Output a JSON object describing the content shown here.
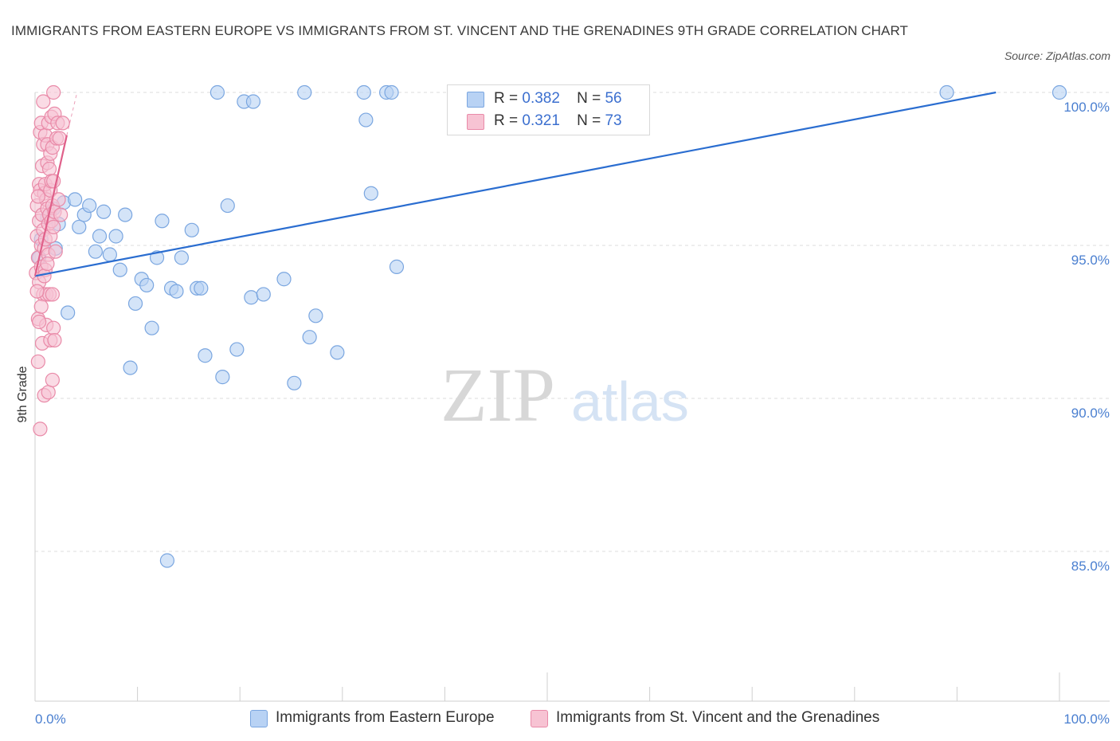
{
  "header": {
    "title": "IMMIGRANTS FROM EASTERN EUROPE VS IMMIGRANTS FROM ST. VINCENT AND THE GRENADINES 9TH GRADE CORRELATION CHART",
    "source": "Source: ZipAtlas.com"
  },
  "watermark": {
    "zip": "ZIP",
    "atlas": "atlas"
  },
  "legend": {
    "blue": {
      "r_label": "R =",
      "r_value": "0.382",
      "n_label": "N =",
      "n_value": "56"
    },
    "pink": {
      "r_label": "R =",
      "r_value": "0.321",
      "n_label": "N =",
      "n_value": "73"
    }
  },
  "colors": {
    "blue_fill": "#b8d2f4",
    "blue_stroke": "#7aa6e0",
    "blue_line": "#2a6dd0",
    "pink_fill": "#f7c3d3",
    "pink_stroke": "#e98aa8",
    "pink_line": "#e0608a",
    "tick_text": "#4a7fd0",
    "grid": "#dedede"
  },
  "chart_data": {
    "type": "scatter",
    "title": "IMMIGRANTS FROM EASTERN EUROPE VS IMMIGRANTS FROM ST. VINCENT AND THE GRENADINES 9TH GRADE CORRELATION CHART",
    "xlabel": "",
    "ylabel": "9th Grade",
    "xlim": [
      0,
      100
    ],
    "ylim": [
      80.5,
      100.4
    ],
    "x_tick_labels": [
      "0.0%",
      "100.0%"
    ],
    "y_ticks": [
      85,
      90,
      95,
      100
    ],
    "y_tick_labels": [
      "85.0%",
      "90.0%",
      "95.0%",
      "100.0%"
    ],
    "grid": true,
    "legend_position": "top-center",
    "series": [
      {
        "name": "Immigrants from Eastern Europe",
        "color": "#b8d2f4",
        "R": 0.382,
        "N": 56,
        "trendline": {
          "x": [
            0,
            93.8
          ],
          "y": [
            94.0,
            100.0
          ]
        },
        "points": [
          [
            0.4,
            94.6
          ],
          [
            1.8,
            96.2
          ],
          [
            2.3,
            95.7
          ],
          [
            2.8,
            96.4
          ],
          [
            3.2,
            92.8
          ],
          [
            3.9,
            96.5
          ],
          [
            4.3,
            95.6
          ],
          [
            4.8,
            96.0
          ],
          [
            5.3,
            96.3
          ],
          [
            5.9,
            94.8
          ],
          [
            6.3,
            95.3
          ],
          [
            6.7,
            96.1
          ],
          [
            7.3,
            94.7
          ],
          [
            7.9,
            95.3
          ],
          [
            8.3,
            94.2
          ],
          [
            8.8,
            96.0
          ],
          [
            9.3,
            91.0
          ],
          [
            9.8,
            93.1
          ],
          [
            10.4,
            93.9
          ],
          [
            10.9,
            93.7
          ],
          [
            11.4,
            92.3
          ],
          [
            11.9,
            94.6
          ],
          [
            12.4,
            95.8
          ],
          [
            12.9,
            84.7
          ],
          [
            13.3,
            93.6
          ],
          [
            13.8,
            93.5
          ],
          [
            14.3,
            94.6
          ],
          [
            15.3,
            95.5
          ],
          [
            15.8,
            93.6
          ],
          [
            16.2,
            93.6
          ],
          [
            16.6,
            91.4
          ],
          [
            17.8,
            100.0
          ],
          [
            18.3,
            90.7
          ],
          [
            18.8,
            96.3
          ],
          [
            19.7,
            91.6
          ],
          [
            20.4,
            99.7
          ],
          [
            21.1,
            93.3
          ],
          [
            21.3,
            99.7
          ],
          [
            22.3,
            93.4
          ],
          [
            24.3,
            93.9
          ],
          [
            25.3,
            90.5
          ],
          [
            26.3,
            100.0
          ],
          [
            26.8,
            92.0
          ],
          [
            27.4,
            92.7
          ],
          [
            29.5,
            91.5
          ],
          [
            32.1,
            100.0
          ],
          [
            32.3,
            99.1
          ],
          [
            32.8,
            96.7
          ],
          [
            34.3,
            100.0
          ],
          [
            34.8,
            100.0
          ],
          [
            35.3,
            94.3
          ],
          [
            89.0,
            100.0
          ],
          [
            100.0,
            100.0
          ],
          [
            0.6,
            95.2
          ],
          [
            1.2,
            95.9
          ],
          [
            2.0,
            94.9
          ]
        ]
      },
      {
        "name": "Immigrants from St. Vincent and the Grenadines",
        "color": "#f7c3d3",
        "R": 0.321,
        "N": 73,
        "trendline": {
          "x": [
            0,
            3.1
          ],
          "y": [
            94.0,
            98.6
          ],
          "dashed_x": [
            3.1,
            4.1
          ],
          "dashed_y": [
            98.6,
            100.0
          ]
        },
        "points": [
          [
            0.1,
            94.1
          ],
          [
            0.2,
            95.3
          ],
          [
            0.2,
            96.3
          ],
          [
            0.3,
            92.6
          ],
          [
            0.3,
            91.2
          ],
          [
            0.3,
            94.6
          ],
          [
            0.4,
            97.0
          ],
          [
            0.4,
            95.8
          ],
          [
            0.4,
            93.8
          ],
          [
            0.5,
            96.8
          ],
          [
            0.5,
            98.7
          ],
          [
            0.5,
            89.0
          ],
          [
            0.6,
            99.0
          ],
          [
            0.6,
            95.0
          ],
          [
            0.6,
            94.3
          ],
          [
            0.7,
            97.6
          ],
          [
            0.7,
            96.0
          ],
          [
            0.7,
            91.8
          ],
          [
            0.8,
            99.7
          ],
          [
            0.8,
            98.3
          ],
          [
            0.8,
            95.5
          ],
          [
            0.8,
            93.4
          ],
          [
            0.9,
            96.7
          ],
          [
            0.9,
            94.9
          ],
          [
            0.9,
            90.1
          ],
          [
            1.0,
            98.6
          ],
          [
            1.0,
            97.0
          ],
          [
            1.0,
            95.2
          ],
          [
            1.0,
            94.2
          ],
          [
            1.1,
            96.5
          ],
          [
            1.1,
            93.4
          ],
          [
            1.1,
            92.4
          ],
          [
            1.2,
            98.3
          ],
          [
            1.2,
            97.7
          ],
          [
            1.2,
            96.2
          ],
          [
            1.3,
            99.0
          ],
          [
            1.3,
            95.7
          ],
          [
            1.3,
            94.7
          ],
          [
            1.3,
            90.2
          ],
          [
            1.4,
            97.5
          ],
          [
            1.4,
            96.0
          ],
          [
            1.4,
            93.4
          ],
          [
            1.5,
            98.0
          ],
          [
            1.5,
            96.8
          ],
          [
            1.5,
            95.3
          ],
          [
            1.5,
            91.9
          ],
          [
            1.6,
            99.2
          ],
          [
            1.6,
            97.1
          ],
          [
            1.6,
            95.8
          ],
          [
            1.7,
            98.2
          ],
          [
            1.7,
            96.3
          ],
          [
            1.7,
            93.4
          ],
          [
            1.7,
            90.6
          ],
          [
            1.8,
            100.0
          ],
          [
            1.8,
            97.1
          ],
          [
            1.8,
            95.6
          ],
          [
            1.8,
            92.3
          ],
          [
            1.9,
            99.3
          ],
          [
            1.9,
            96.1
          ],
          [
            1.9,
            91.9
          ],
          [
            2.0,
            94.8
          ],
          [
            2.1,
            98.5
          ],
          [
            2.2,
            99.0
          ],
          [
            2.3,
            96.5
          ],
          [
            2.4,
            98.5
          ],
          [
            2.7,
            99.0
          ],
          [
            0.2,
            93.5
          ],
          [
            0.3,
            96.6
          ],
          [
            0.4,
            92.5
          ],
          [
            0.6,
            93.0
          ],
          [
            0.9,
            94.0
          ],
          [
            1.2,
            94.4
          ],
          [
            2.5,
            96.0
          ]
        ]
      }
    ]
  }
}
